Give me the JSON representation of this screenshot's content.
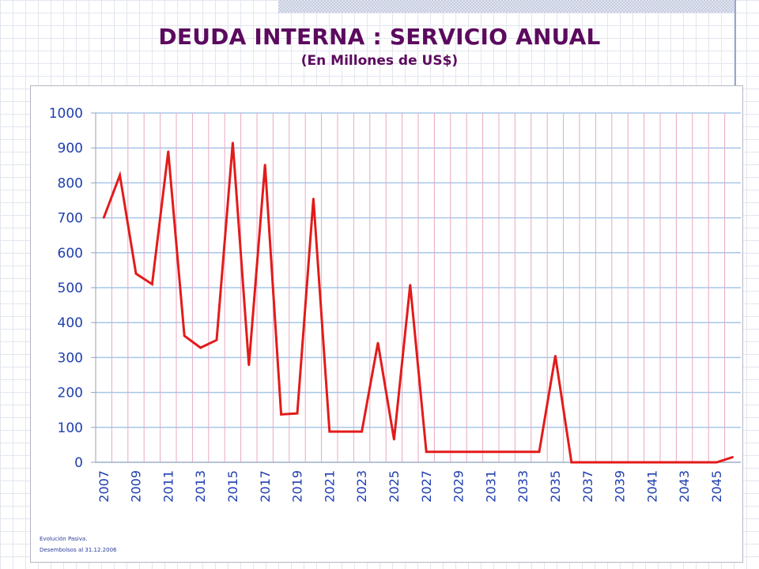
{
  "colors": {
    "title": "#5b0a5e",
    "line": "#e31b1b",
    "ticks": "#1f3fae",
    "hgrid": "#a7c7e7",
    "vgrid": "#e8a8c4"
  },
  "chart_data": {
    "type": "line",
    "title": "DEUDA INTERNA : SERVICIO ANUAL",
    "subtitle": "(En Millones de US$)",
    "xlabel": "",
    "ylabel": "",
    "ylim": [
      0,
      1000
    ],
    "yticks": [
      0,
      100,
      200,
      300,
      400,
      500,
      600,
      700,
      800,
      900,
      1000
    ],
    "x": [
      2007,
      2008,
      2009,
      2010,
      2011,
      2012,
      2013,
      2014,
      2015,
      2016,
      2017,
      2018,
      2019,
      2020,
      2021,
      2022,
      2023,
      2024,
      2025,
      2026,
      2027,
      2028,
      2029,
      2030,
      2031,
      2032,
      2033,
      2034,
      2035,
      2036,
      2037,
      2038,
      2039,
      2040,
      2041,
      2042,
      2043,
      2044,
      2045,
      2046
    ],
    "xtick_labels": [
      "2007",
      "2009",
      "2011",
      "2013",
      "2015",
      "2017",
      "2019",
      "2021",
      "2023",
      "2025",
      "2027",
      "2029",
      "2031",
      "2033",
      "2035",
      "2037",
      "2039",
      "2041",
      "2043",
      "2045"
    ],
    "series": [
      {
        "name": "Servicio anual",
        "values": [
          700,
          822,
          540,
          510,
          890,
          362,
          328,
          350,
          915,
          278,
          852,
          137,
          140,
          755,
          88,
          88,
          88,
          342,
          65,
          508,
          30,
          30,
          30,
          30,
          30,
          30,
          30,
          30,
          305,
          0,
          0,
          0,
          0,
          0,
          0,
          0,
          0,
          0,
          0,
          15
        ]
      }
    ],
    "grid": true
  },
  "footnotes": {
    "line1": "Evolución Pasiva.",
    "line2": "Desembolsos al 31.12.2006"
  }
}
